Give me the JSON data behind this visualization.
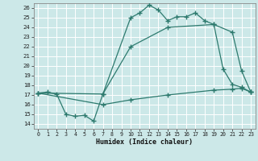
{
  "xlabel": "Humidex (Indice chaleur)",
  "bg_color": "#cce8e8",
  "grid_color": "#aacccc",
  "line_color": "#2d7a6e",
  "xlim": [
    -0.5,
    23.5
  ],
  "ylim": [
    13.5,
    26.5
  ],
  "xticks": [
    0,
    1,
    2,
    3,
    4,
    5,
    6,
    7,
    8,
    9,
    10,
    11,
    12,
    13,
    14,
    15,
    16,
    17,
    18,
    19,
    20,
    21,
    22,
    23
  ],
  "yticks": [
    14,
    15,
    16,
    17,
    18,
    19,
    20,
    21,
    22,
    23,
    24,
    25,
    26
  ],
  "line1_x": [
    0,
    1,
    2,
    3,
    4,
    5,
    6,
    7,
    10,
    11,
    12,
    13,
    14,
    15,
    16,
    17,
    18,
    19,
    20,
    21,
    22,
    23
  ],
  "line1_y": [
    17.2,
    17.3,
    17.1,
    15.0,
    14.8,
    14.9,
    14.3,
    17.1,
    25.0,
    25.5,
    26.3,
    25.8,
    24.7,
    25.1,
    25.1,
    25.5,
    24.7,
    24.3,
    19.7,
    18.1,
    17.8,
    17.3
  ],
  "line2_x": [
    0,
    7,
    10,
    14,
    19,
    21,
    22,
    23
  ],
  "line2_y": [
    17.2,
    17.1,
    22.0,
    24.0,
    24.3,
    23.5,
    19.5,
    17.3
  ],
  "line3_x": [
    0,
    7,
    10,
    14,
    19,
    21,
    22,
    23
  ],
  "line3_y": [
    17.2,
    16.0,
    16.5,
    17.0,
    17.5,
    17.6,
    17.7,
    17.3
  ]
}
